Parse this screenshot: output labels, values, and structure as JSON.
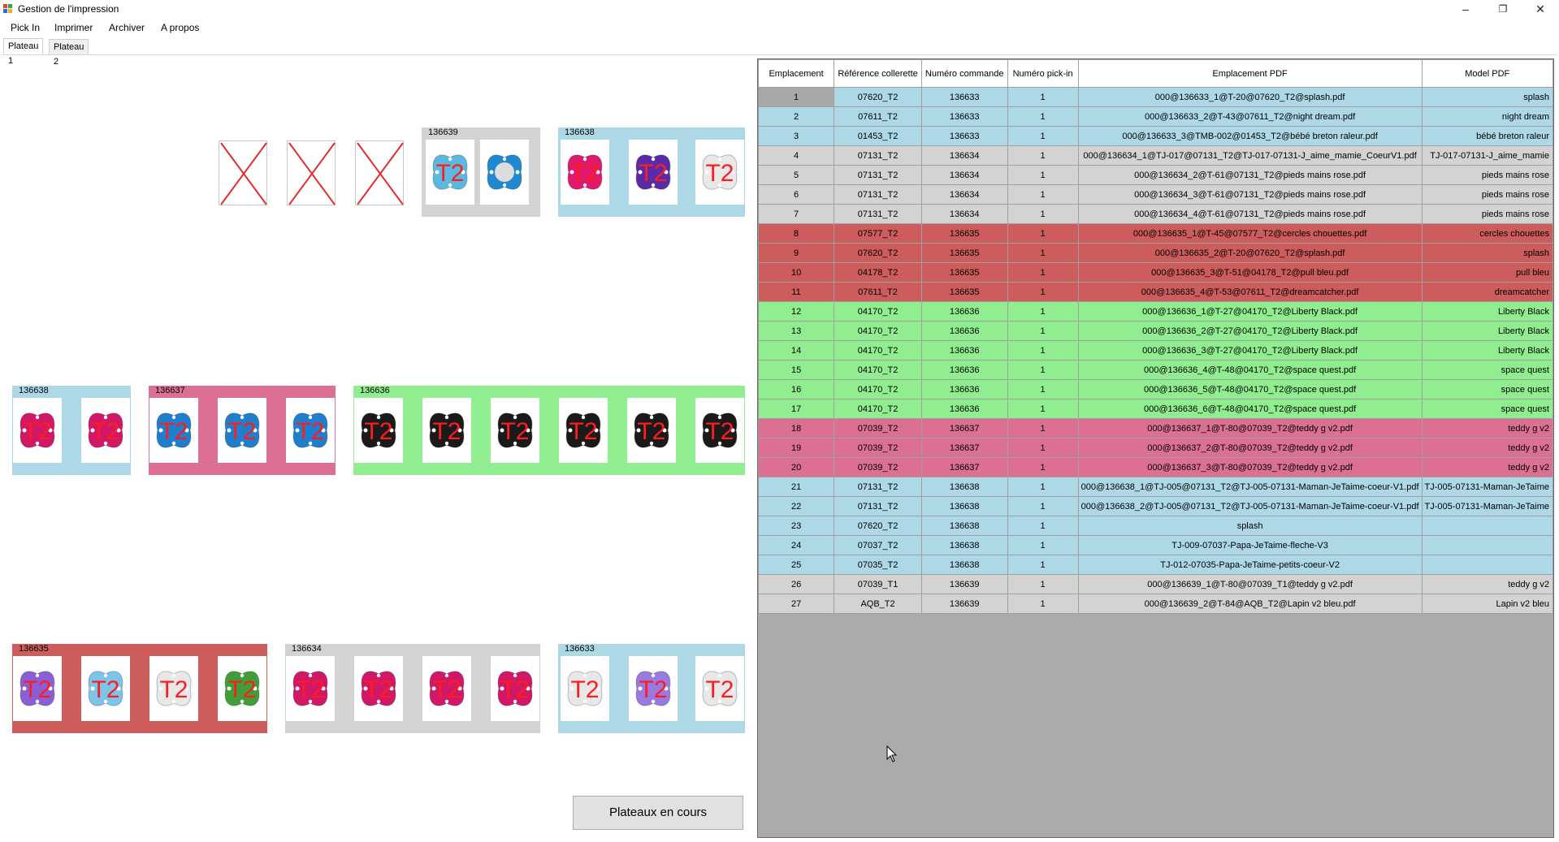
{
  "window": {
    "title": "Gestion de l'impression",
    "minimize_glyph": "–",
    "restore_glyph": "❐",
    "close_glyph": "✕"
  },
  "menu": [
    "Pick In",
    "Imprimer",
    "Archiver",
    "A propos"
  ],
  "tabs": [
    "Plateau 1",
    "Plateau 2"
  ],
  "colors": {
    "blue": "#add8e6",
    "grey": "#d3d3d3",
    "red": "#cd5c5c",
    "green": "#90ee90",
    "pink": "#db7093",
    "empty_cross": "#e03030"
  },
  "tray": {
    "t2_label": "T2",
    "empty_marker_count": 3,
    "groups": [
      {
        "label": "136639",
        "color": "grey",
        "pacifiers": [
          {
            "shield": "#5bb8de",
            "text": "T2"
          },
          {
            "shield": "#1e88d0",
            "text": ""
          }
        ]
      },
      {
        "label": "136638",
        "color": "blue",
        "pacifiers": [
          {
            "shield": "#e0196e",
            "text": "T2"
          },
          {
            "shield": "#5a2aa8",
            "text": "T2"
          },
          {
            "shield": "#e8e8e8",
            "text": "T2"
          }
        ]
      },
      {
        "label": "136638",
        "color": "blue",
        "pacifiers": [
          {
            "shield": "#d11868",
            "text": "T2"
          },
          {
            "shield": "#d11868",
            "text": "T2"
          }
        ]
      },
      {
        "label": "136637",
        "color": "pink",
        "pacifiers": [
          {
            "shield": "#1e7fcf",
            "text": "T2"
          },
          {
            "shield": "#1e7fcf",
            "text": "T2"
          },
          {
            "shield": "#1e7fcf",
            "text": "T2"
          }
        ]
      },
      {
        "label": "136636",
        "color": "green",
        "pacifiers": [
          {
            "shield": "#1a1a1a",
            "text": "T2"
          },
          {
            "shield": "#1a1a1a",
            "text": "T2"
          },
          {
            "shield": "#1a1a1a",
            "text": "T2"
          },
          {
            "shield": "#1a1a1a",
            "text": "T2"
          },
          {
            "shield": "#1a1a1a",
            "text": "T2"
          },
          {
            "shield": "#1a1a1a",
            "text": "T2"
          }
        ]
      },
      {
        "label": "136635",
        "color": "red",
        "pacifiers": [
          {
            "shield": "#8a5fd6",
            "text": "T2"
          },
          {
            "shield": "#7cc4e8",
            "text": "T2"
          },
          {
            "shield": "#e8e8e8",
            "text": "T2"
          },
          {
            "shield": "#3f9e3a",
            "text": "T2"
          }
        ]
      },
      {
        "label": "136634",
        "color": "grey",
        "pacifiers": [
          {
            "shield": "#d11868",
            "text": "T2"
          },
          {
            "shield": "#d11868",
            "text": "T2"
          },
          {
            "shield": "#d11868",
            "text": "T2"
          },
          {
            "shield": "#d11868",
            "text": "T2"
          }
        ]
      },
      {
        "label": "136633",
        "color": "blue",
        "pacifiers": [
          {
            "shield": "#e8e8e8",
            "text": "T2"
          },
          {
            "shield": "#9a7ae0",
            "text": "T2"
          },
          {
            "shield": "#e8e8e8",
            "text": "T2"
          }
        ]
      }
    ]
  },
  "button_label": "Plateaux en cours",
  "grid": {
    "columns": [
      "Emplacement",
      "Référence collerette",
      "Numéro commande",
      "Numéro pick-in",
      "Emplacement PDF",
      "Model PDF"
    ],
    "rows": [
      {
        "c": "blue",
        "sel": true,
        "v": [
          "1",
          "07620_T2",
          "136633",
          "1",
          "000@136633_1@T-20@07620_T2@splash.pdf",
          "splash"
        ]
      },
      {
        "c": "blue",
        "v": [
          "2",
          "07611_T2",
          "136633",
          "1",
          "000@136633_2@T-43@07611_T2@night dream.pdf",
          "night dream"
        ]
      },
      {
        "c": "blue",
        "v": [
          "3",
          "01453_T2",
          "136633",
          "1",
          "000@136633_3@TMB-002@01453_T2@bébé breton raleur.pdf",
          "bébé breton raleur"
        ]
      },
      {
        "c": "grey",
        "v": [
          "4",
          "07131_T2",
          "136634",
          "1",
          "000@136634_1@TJ-017@07131_T2@TJ-017-07131-J_aime_mamie_CoeurV1.pdf",
          "TJ-017-07131-J_aime_mamie"
        ]
      },
      {
        "c": "grey",
        "v": [
          "5",
          "07131_T2",
          "136634",
          "1",
          "000@136634_2@T-61@07131_T2@pieds mains rose.pdf",
          "pieds mains rose"
        ]
      },
      {
        "c": "grey",
        "v": [
          "6",
          "07131_T2",
          "136634",
          "1",
          "000@136634_3@T-61@07131_T2@pieds mains rose.pdf",
          "pieds mains rose"
        ]
      },
      {
        "c": "grey",
        "v": [
          "7",
          "07131_T2",
          "136634",
          "1",
          "000@136634_4@T-61@07131_T2@pieds mains rose.pdf",
          "pieds mains rose"
        ]
      },
      {
        "c": "red",
        "v": [
          "8",
          "07577_T2",
          "136635",
          "1",
          "000@136635_1@T-45@07577_T2@cercles chouettes.pdf",
          "cercles chouettes"
        ]
      },
      {
        "c": "red",
        "v": [
          "9",
          "07620_T2",
          "136635",
          "1",
          "000@136635_2@T-20@07620_T2@splash.pdf",
          "splash"
        ]
      },
      {
        "c": "red",
        "v": [
          "10",
          "04178_T2",
          "136635",
          "1",
          "000@136635_3@T-51@04178_T2@pull bleu.pdf",
          "pull bleu"
        ]
      },
      {
        "c": "red",
        "v": [
          "11",
          "07611_T2",
          "136635",
          "1",
          "000@136635_4@T-53@07611_T2@dreamcatcher.pdf",
          "dreamcatcher"
        ]
      },
      {
        "c": "green",
        "v": [
          "12",
          "04170_T2",
          "136636",
          "1",
          "000@136636_1@T-27@04170_T2@Liberty Black.pdf",
          "Liberty Black"
        ]
      },
      {
        "c": "green",
        "v": [
          "13",
          "04170_T2",
          "136636",
          "1",
          "000@136636_2@T-27@04170_T2@Liberty Black.pdf",
          "Liberty Black"
        ]
      },
      {
        "c": "green",
        "v": [
          "14",
          "04170_T2",
          "136636",
          "1",
          "000@136636_3@T-27@04170_T2@Liberty Black.pdf",
          "Liberty Black"
        ]
      },
      {
        "c": "green",
        "v": [
          "15",
          "04170_T2",
          "136636",
          "1",
          "000@136636_4@T-48@04170_T2@space quest.pdf",
          "space quest"
        ]
      },
      {
        "c": "green",
        "v": [
          "16",
          "04170_T2",
          "136636",
          "1",
          "000@136636_5@T-48@04170_T2@space quest.pdf",
          "space quest"
        ]
      },
      {
        "c": "green",
        "v": [
          "17",
          "04170_T2",
          "136636",
          "1",
          "000@136636_6@T-48@04170_T2@space quest.pdf",
          "space quest"
        ]
      },
      {
        "c": "pink",
        "v": [
          "18",
          "07039_T2",
          "136637",
          "1",
          "000@136637_1@T-80@07039_T2@teddy g v2.pdf",
          "teddy g v2"
        ]
      },
      {
        "c": "pink",
        "v": [
          "19",
          "07039_T2",
          "136637",
          "1",
          "000@136637_2@T-80@07039_T2@teddy g v2.pdf",
          "teddy g v2"
        ]
      },
      {
        "c": "pink",
        "v": [
          "20",
          "07039_T2",
          "136637",
          "1",
          "000@136637_3@T-80@07039_T2@teddy g v2.pdf",
          "teddy g v2"
        ]
      },
      {
        "c": "blue",
        "v": [
          "21",
          "07131_T2",
          "136638",
          "1",
          "000@136638_1@TJ-005@07131_T2@TJ-005-07131-Maman-JeTaime-coeur-V1.pdf",
          "TJ-005-07131-Maman-JeTaime"
        ]
      },
      {
        "c": "blue",
        "v": [
          "22",
          "07131_T2",
          "136638",
          "1",
          "000@136638_2@TJ-005@07131_T2@TJ-005-07131-Maman-JeTaime-coeur-V1.pdf",
          "TJ-005-07131-Maman-JeTaime"
        ]
      },
      {
        "c": "blue",
        "v": [
          "23",
          "07620_T2",
          "136638",
          "1",
          "splash",
          ""
        ]
      },
      {
        "c": "blue",
        "v": [
          "24",
          "07037_T2",
          "136638",
          "1",
          "TJ-009-07037-Papa-JeTaime-fleche-V3",
          ""
        ]
      },
      {
        "c": "blue",
        "v": [
          "25",
          "07035_T2",
          "136638",
          "1",
          "TJ-012-07035-Papa-JeTaime-petits-coeur-V2",
          ""
        ]
      },
      {
        "c": "grey",
        "v": [
          "26",
          "07039_T1",
          "136639",
          "1",
          "000@136639_1@T-80@07039_T1@teddy g v2.pdf",
          "teddy g v2"
        ]
      },
      {
        "c": "grey",
        "v": [
          "27",
          "AQB_T2",
          "136639",
          "1",
          "000@136639_2@T-84@AQB_T2@Lapin v2 bleu.pdf",
          "Lapin v2 bleu"
        ]
      }
    ]
  }
}
